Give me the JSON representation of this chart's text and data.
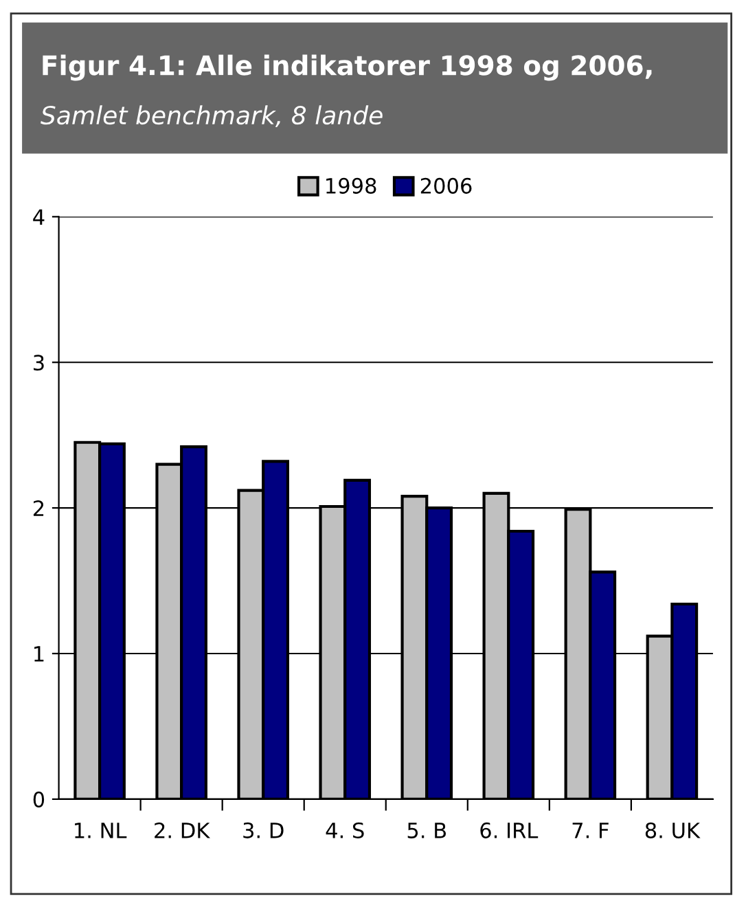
{
  "chart_data": {
    "type": "bar",
    "title": "Figur 4.1: Alle indikatorer 1998 og 2006,",
    "subtitle": "Samlet benchmark, 8 lande",
    "categories": [
      "1. NL",
      "2. DK",
      "3. D",
      "4. S",
      "5. B",
      "6. IRL",
      "7. F",
      "8. UK"
    ],
    "series": [
      {
        "name": "1998",
        "color": "#c0c0c0",
        "values": [
          2.45,
          2.3,
          2.12,
          2.01,
          2.08,
          2.1,
          1.99,
          1.12
        ]
      },
      {
        "name": "2006",
        "color": "#000080",
        "values": [
          2.44,
          2.42,
          2.32,
          2.19,
          2.0,
          1.84,
          1.56,
          1.34
        ]
      }
    ],
    "ylim": [
      0,
      4
    ],
    "yticks": [
      0,
      1,
      2,
      3,
      4
    ],
    "grid": "y",
    "legend": "top"
  }
}
